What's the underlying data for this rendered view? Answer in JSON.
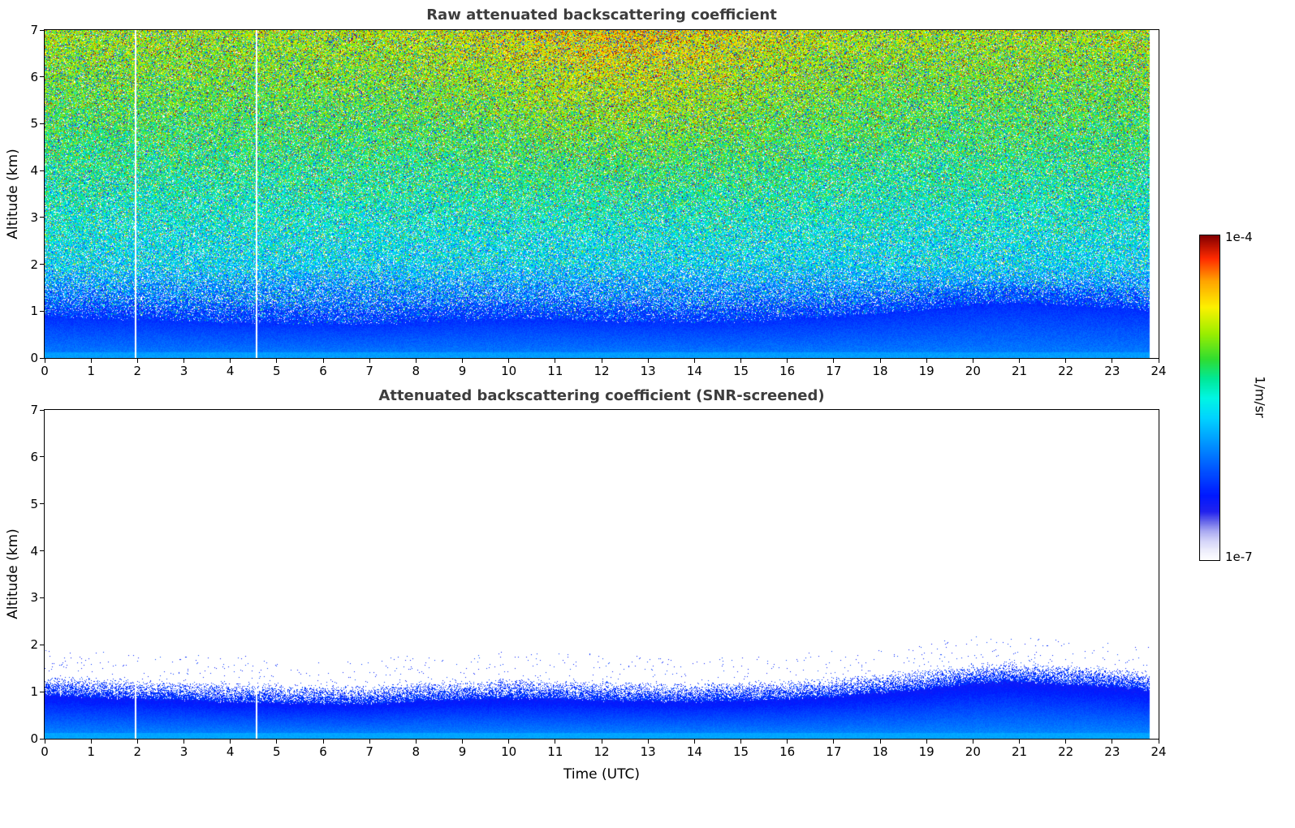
{
  "figure": {
    "background": "#ffffff",
    "title_color": "#3d3d3d"
  },
  "colorbar": {
    "label": "1/m/sr",
    "vmax": "1e-4",
    "vmin": "1e-7",
    "scale": "log",
    "orientation": "vertical"
  },
  "colormap": [
    [
      0.0,
      "#ffffff"
    ],
    [
      0.03,
      "#eeeefc"
    ],
    [
      0.06,
      "#d4d4f9"
    ],
    [
      0.09,
      "#aaaaf2"
    ],
    [
      0.12,
      "#6666ea"
    ],
    [
      0.15,
      "#2222ee"
    ],
    [
      0.2,
      "#0018ff"
    ],
    [
      0.28,
      "#0055ff"
    ],
    [
      0.36,
      "#0095ff"
    ],
    [
      0.44,
      "#00d4ff"
    ],
    [
      0.5,
      "#00f6e4"
    ],
    [
      0.56,
      "#00e896"
    ],
    [
      0.62,
      "#30dd30"
    ],
    [
      0.7,
      "#9dee00"
    ],
    [
      0.78,
      "#fdf100"
    ],
    [
      0.86,
      "#ffa400"
    ],
    [
      0.93,
      "#ff2a00"
    ],
    [
      1.0,
      "#840000"
    ]
  ],
  "chart_data": [
    {
      "type": "heatmap",
      "id": "raw",
      "title": "Raw attenuated backscattering coefficient",
      "xlabel": "",
      "ylabel": "Altitude (km)",
      "units": "1/m/sr",
      "xlim": [
        0,
        24
      ],
      "ylim": [
        0,
        7
      ],
      "xticks": [
        "0",
        "1",
        "2",
        "3",
        "4",
        "5",
        "6",
        "7",
        "8",
        "9",
        "10",
        "11",
        "12",
        "13",
        "14",
        "15",
        "16",
        "17",
        "18",
        "19",
        "20",
        "21",
        "22",
        "23",
        "24"
      ],
      "yticks": [
        "0",
        "1",
        "2",
        "3",
        "4",
        "5",
        "6",
        "7"
      ],
      "x_data_end": 23.8,
      "gap_times": [
        1.95,
        4.55
      ],
      "model": {
        "kind": "noisy_backscatter",
        "seed": 1234,
        "profile_alts": [
          0.8,
          1.5,
          2,
          3,
          4,
          5,
          6,
          7
        ],
        "profile_t": [
          0.26,
          0.33,
          0.44,
          0.5,
          0.56,
          0.61,
          0.66,
          0.71
        ],
        "midday_boost": 0.1,
        "midday_center": 12.5,
        "midday_width": 3.5,
        "layer_top": {
          "times": [
            0,
            1,
            2,
            3,
            4,
            5,
            6,
            7,
            8,
            9,
            10,
            11,
            12,
            13,
            14,
            15,
            16,
            17,
            18,
            19,
            20,
            21,
            22,
            23,
            23.8
          ],
          "heights": [
            1.05,
            1.0,
            0.97,
            0.94,
            0.9,
            0.88,
            0.86,
            0.85,
            0.92,
            0.95,
            0.98,
            0.97,
            0.93,
            0.92,
            0.9,
            0.92,
            0.96,
            1.02,
            1.1,
            1.18,
            1.3,
            1.33,
            1.28,
            1.22,
            1.15
          ]
        }
      }
    },
    {
      "type": "heatmap",
      "id": "screened",
      "title": "Attenuated backscattering coefficient (SNR-screened)",
      "xlabel": "Time (UTC)",
      "ylabel": "Altitude (km)",
      "units": "1/m/sr",
      "xlim": [
        0,
        24
      ],
      "ylim": [
        0,
        7
      ],
      "xticks": [
        "0",
        "1",
        "2",
        "3",
        "4",
        "5",
        "6",
        "7",
        "8",
        "9",
        "10",
        "11",
        "12",
        "13",
        "14",
        "15",
        "16",
        "17",
        "18",
        "19",
        "20",
        "21",
        "22",
        "23",
        "24"
      ],
      "yticks": [
        "0",
        "1",
        "2",
        "3",
        "4",
        "5",
        "6",
        "7"
      ],
      "x_data_end": 23.8,
      "gap_times": [
        1.95,
        4.55
      ],
      "model": {
        "kind": "screened_layer",
        "seed": 987,
        "layer_t_surface": 0.36,
        "layer_t_top": 0.16,
        "edge_speckle_t": 0.18,
        "layer_top": {
          "times": [
            0,
            1,
            2,
            3,
            4,
            5,
            6,
            7,
            8,
            9,
            10,
            11,
            12,
            13,
            14,
            15,
            16,
            17,
            18,
            19,
            20,
            21,
            22,
            23,
            23.8
          ],
          "heights": [
            1.05,
            1.0,
            0.97,
            0.94,
            0.9,
            0.88,
            0.86,
            0.85,
            0.92,
            0.95,
            0.98,
            0.97,
            0.93,
            0.92,
            0.9,
            0.92,
            0.96,
            1.02,
            1.1,
            1.18,
            1.3,
            1.33,
            1.28,
            1.22,
            1.15
          ]
        }
      }
    }
  ]
}
